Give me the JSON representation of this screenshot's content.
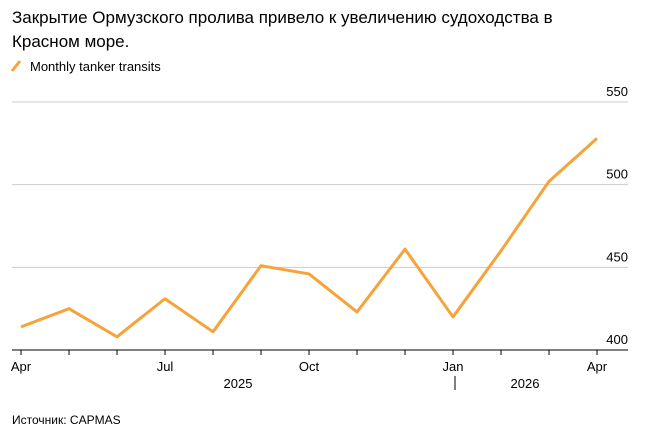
{
  "chart_data": {
    "type": "line",
    "title": "Закрытие Ормузского пролива привело к увеличению судоходства в Красном море.",
    "categories": [
      "Apr",
      null,
      null,
      "Jul",
      null,
      null,
      "Oct",
      null,
      null,
      "Jan",
      null,
      null,
      "Apr"
    ],
    "year_labels": [
      "2025",
      "2026"
    ],
    "series": [
      {
        "name": "Monthly tanker transits",
        "color": "#f5a33a",
        "values": [
          414,
          425,
          408,
          431,
          411,
          451,
          446,
          423,
          461,
          420,
          460,
          502,
          528
        ]
      }
    ],
    "ylim": [
      400,
      550
    ],
    "yticks": [
      400,
      450,
      500,
      550
    ],
    "grid": true,
    "source": "Источник: CAPMAS"
  }
}
